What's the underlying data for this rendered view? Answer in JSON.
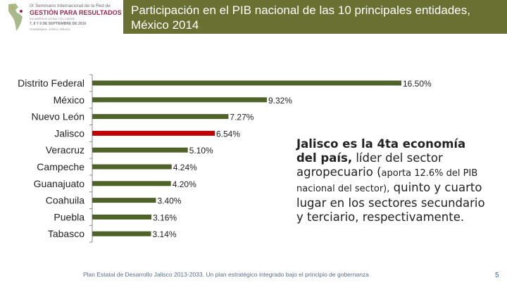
{
  "header": {
    "title": "Participación en el PIB nacional de las 10 principales entidades, México 2014",
    "logo": {
      "line1": "IX Seminario Internacional de la Red de",
      "line2": "GESTIÓN PARA RESULTADOS",
      "line3": "EN AMÉRICA LATINA Y EL CARIBE",
      "line4": "7, 8 Y 9 DE SEPTIEMBRE DE 2016",
      "line5": "Guadalajara, Jalisco, México"
    }
  },
  "chart_data": {
    "type": "bar",
    "orientation": "horizontal",
    "title": "Participación en el PIB nacional de las 10 principales entidades, México 2014",
    "categories": [
      "Distrito Federal",
      "México",
      "Nuevo León",
      "Jalisco",
      "Veracruz",
      "Campeche",
      "Guanajuato",
      "Coahuila",
      "Puebla",
      "Tabasco"
    ],
    "values": [
      16.5,
      9.32,
      7.27,
      6.54,
      5.1,
      4.24,
      4.2,
      3.4,
      3.16,
      3.14
    ],
    "labels": [
      "16.50%",
      "9.32%",
      "7.27%",
      "6.54%",
      "5.10%",
      "4.24%",
      "4.20%",
      "3.40%",
      "3.16%",
      "3.14%"
    ],
    "highlight": "Jalisco",
    "xlim": [
      0,
      17.5
    ],
    "colors": {
      "default": "#4f6228",
      "highlight": "#c00000"
    }
  },
  "side_text": {
    "part1": "Jalisco es la 4ta economía del país,",
    "part2": " líder del sector agropecuario (",
    "part3": "aporta 12.6% del PIB nacional del sector),",
    "part4": " quinto y cuarto lugar en los sectores secundario y terciario, respectivamente."
  },
  "footer": {
    "text": "Plan Estatal de Desarrollo Jalisco 2013-2033. Un plan estratégico integrado bajo el principio de gobernanza",
    "page": "5"
  }
}
